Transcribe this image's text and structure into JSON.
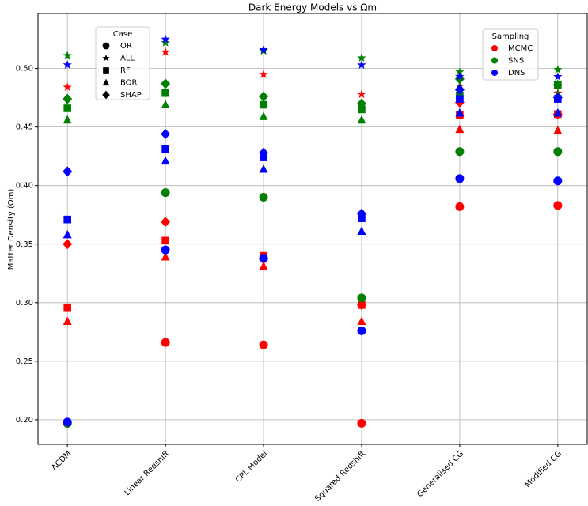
{
  "chart_data": {
    "type": "scatter",
    "title": "Dark Energy Models vs Ωm",
    "y_label": "Matter Density (Ωm)",
    "categories": [
      "ΛCDM",
      "Linear Redshift",
      "CPL Model",
      "Squared Redshift",
      "Generalised CG",
      "Modified CG"
    ],
    "ylim": [
      0.179,
      0.547
    ],
    "yticks": [
      {
        "value": 0.2,
        "label": "0.20"
      },
      0.25,
      {
        "value": 0.3,
        "label": "0.30"
      },
      0.35,
      {
        "value": 0.4,
        "label": "0.40"
      },
      0.45,
      {
        "value": 0.5,
        "label": "0.50"
      }
    ],
    "grid": true,
    "case_legend_title": "Case",
    "cases": [
      {
        "name": "OR",
        "marker": "o"
      },
      {
        "name": "ALL",
        "marker": "*"
      },
      {
        "name": "RF",
        "marker": "s"
      },
      {
        "name": "BOR",
        "marker": "^"
      },
      {
        "name": "SHAP",
        "marker": "D"
      }
    ],
    "sampling_legend_title": "Sampling",
    "samplings": [
      {
        "name": "MCMC",
        "color": "#ff0000",
        "values": [
          [
            0.197,
            0.266,
            0.264,
            0.197,
            0.382,
            0.383
          ],
          [
            0.484,
            0.514,
            0.495,
            0.478,
            0.485,
            0.479
          ],
          [
            0.296,
            0.353,
            0.34,
            0.298,
            0.46,
            0.461
          ],
          [
            0.284,
            0.339,
            0.331,
            0.284,
            0.448,
            0.447
          ],
          [
            0.35,
            0.369,
            0.337,
            0.298,
            0.471,
            0.461
          ]
        ]
      },
      {
        "name": "SNS",
        "color": "#008000",
        "values": [
          [
            0.197,
            0.394,
            0.39,
            0.304,
            0.429,
            0.429
          ],
          [
            0.511,
            0.522,
            0.515,
            0.509,
            0.497,
            0.499
          ],
          [
            0.466,
            0.479,
            0.469,
            0.465,
            0.477,
            0.486
          ],
          [
            0.456,
            0.469,
            0.459,
            0.456,
            0.484,
            0.478
          ],
          [
            0.474,
            0.487,
            0.476,
            0.47,
            0.491,
            0.486
          ]
        ]
      },
      {
        "name": "DNS",
        "color": "#0000ff",
        "values": [
          [
            0.198,
            0.345,
            0.338,
            0.276,
            0.406,
            0.404
          ],
          [
            0.503,
            0.525,
            0.516,
            0.503,
            0.493,
            0.493
          ],
          [
            0.371,
            0.431,
            0.424,
            0.372,
            0.474,
            0.474
          ],
          [
            0.358,
            0.421,
            0.414,
            0.361,
            0.462,
            0.462
          ],
          [
            0.412,
            0.444,
            0.428,
            0.376,
            0.482,
            0.475
          ]
        ]
      }
    ]
  }
}
